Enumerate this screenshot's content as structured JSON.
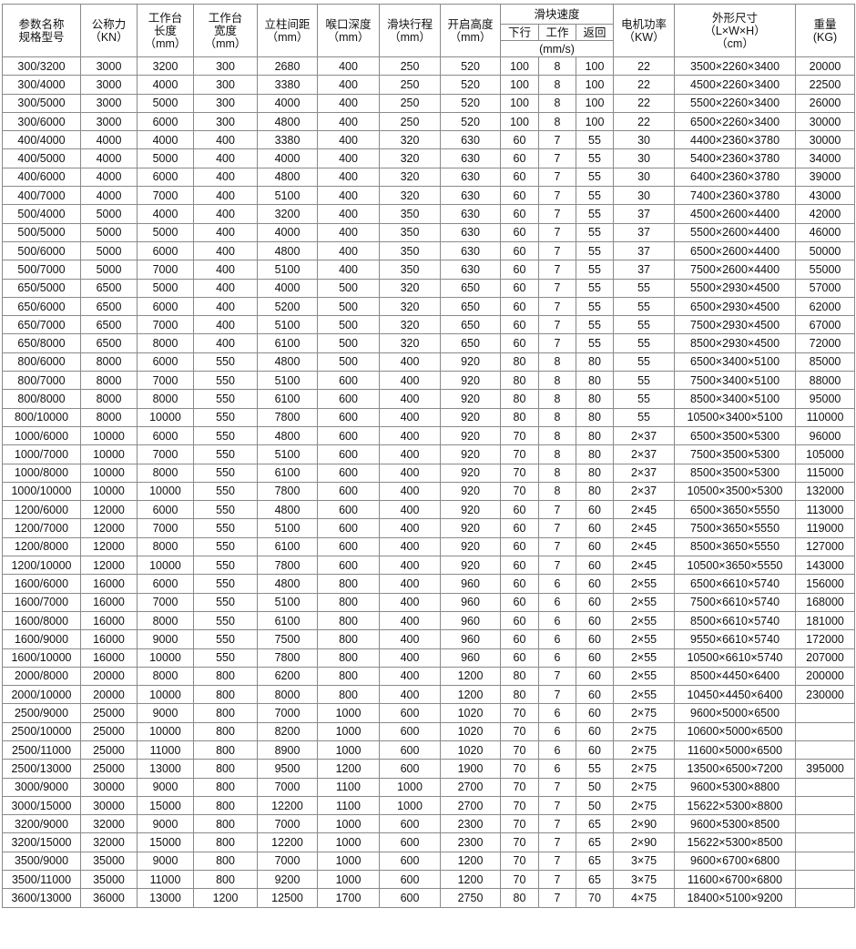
{
  "header": {
    "model": [
      "参数名称",
      "规格型号"
    ],
    "force": [
      "公称力",
      "（KN）"
    ],
    "table_length": [
      "工作台",
      "长度",
      "（mm）"
    ],
    "table_width": [
      "工作台",
      "宽度",
      "（mm）"
    ],
    "column_spacing": [
      "立柱间距",
      "（mm）"
    ],
    "throat_depth": [
      "喉口深度",
      "（mm）"
    ],
    "stroke": [
      "滑块行程",
      "（mm）"
    ],
    "open_height": [
      "开启高度",
      "（mm）"
    ],
    "slide_speed": "滑块速度",
    "speed_down": "下行",
    "speed_work": "工作",
    "speed_return": "返回",
    "speed_unit": "(mm/s)",
    "motor_power": [
      "电机功率",
      "（KW）"
    ],
    "dimensions": [
      "外形尺寸",
      "（L×W×H）",
      "（cm）"
    ],
    "weight": [
      "重量",
      "(KG)"
    ]
  },
  "rows": [
    [
      "300/3200",
      "3000",
      "3200",
      "300",
      "2680",
      "400",
      "250",
      "520",
      "100",
      "8",
      "100",
      "22",
      "3500×2260×3400",
      "20000"
    ],
    [
      "300/4000",
      "3000",
      "4000",
      "300",
      "3380",
      "400",
      "250",
      "520",
      "100",
      "8",
      "100",
      "22",
      "4500×2260×3400",
      "22500"
    ],
    [
      "300/5000",
      "3000",
      "5000",
      "300",
      "4000",
      "400",
      "250",
      "520",
      "100",
      "8",
      "100",
      "22",
      "5500×2260×3400",
      "26000"
    ],
    [
      "300/6000",
      "3000",
      "6000",
      "300",
      "4800",
      "400",
      "250",
      "520",
      "100",
      "8",
      "100",
      "22",
      "6500×2260×3400",
      "30000"
    ],
    [
      "400/4000",
      "4000",
      "4000",
      "400",
      "3380",
      "400",
      "320",
      "630",
      "60",
      "7",
      "55",
      "30",
      "4400×2360×3780",
      "30000"
    ],
    [
      "400/5000",
      "4000",
      "5000",
      "400",
      "4000",
      "400",
      "320",
      "630",
      "60",
      "7",
      "55",
      "30",
      "5400×2360×3780",
      "34000"
    ],
    [
      "400/6000",
      "4000",
      "6000",
      "400",
      "4800",
      "400",
      "320",
      "630",
      "60",
      "7",
      "55",
      "30",
      "6400×2360×3780",
      "39000"
    ],
    [
      "400/7000",
      "4000",
      "7000",
      "400",
      "5100",
      "400",
      "320",
      "630",
      "60",
      "7",
      "55",
      "30",
      "7400×2360×3780",
      "43000"
    ],
    [
      "500/4000",
      "5000",
      "4000",
      "400",
      "3200",
      "400",
      "350",
      "630",
      "60",
      "7",
      "55",
      "37",
      "4500×2600×4400",
      "42000"
    ],
    [
      "500/5000",
      "5000",
      "5000",
      "400",
      "4000",
      "400",
      "350",
      "630",
      "60",
      "7",
      "55",
      "37",
      "5500×2600×4400",
      "46000"
    ],
    [
      "500/6000",
      "5000",
      "6000",
      "400",
      "4800",
      "400",
      "350",
      "630",
      "60",
      "7",
      "55",
      "37",
      "6500×2600×4400",
      "50000"
    ],
    [
      "500/7000",
      "5000",
      "7000",
      "400",
      "5100",
      "400",
      "350",
      "630",
      "60",
      "7",
      "55",
      "37",
      "7500×2600×4400",
      "55000"
    ],
    [
      "650/5000",
      "6500",
      "5000",
      "400",
      "4000",
      "500",
      "320",
      "650",
      "60",
      "7",
      "55",
      "55",
      "5500×2930×4500",
      "57000"
    ],
    [
      "650/6000",
      "6500",
      "6000",
      "400",
      "5200",
      "500",
      "320",
      "650",
      "60",
      "7",
      "55",
      "55",
      "6500×2930×4500",
      "62000"
    ],
    [
      "650/7000",
      "6500",
      "7000",
      "400",
      "5100",
      "500",
      "320",
      "650",
      "60",
      "7",
      "55",
      "55",
      "7500×2930×4500",
      "67000"
    ],
    [
      "650/8000",
      "6500",
      "8000",
      "400",
      "6100",
      "500",
      "320",
      "650",
      "60",
      "7",
      "55",
      "55",
      "8500×2930×4500",
      "72000"
    ],
    [
      "800/6000",
      "8000",
      "6000",
      "550",
      "4800",
      "500",
      "400",
      "920",
      "80",
      "8",
      "80",
      "55",
      "6500×3400×5100",
      "85000"
    ],
    [
      "800/7000",
      "8000",
      "7000",
      "550",
      "5100",
      "600",
      "400",
      "920",
      "80",
      "8",
      "80",
      "55",
      "7500×3400×5100",
      "88000"
    ],
    [
      "800/8000",
      "8000",
      "8000",
      "550",
      "6100",
      "600",
      "400",
      "920",
      "80",
      "8",
      "80",
      "55",
      "8500×3400×5100",
      "95000"
    ],
    [
      "800/10000",
      "8000",
      "10000",
      "550",
      "7800",
      "600",
      "400",
      "920",
      "80",
      "8",
      "80",
      "55",
      "10500×3400×5100",
      "110000"
    ],
    [
      "1000/6000",
      "10000",
      "6000",
      "550",
      "4800",
      "600",
      "400",
      "920",
      "70",
      "8",
      "80",
      "2×37",
      "6500×3500×5300",
      "96000"
    ],
    [
      "1000/7000",
      "10000",
      "7000",
      "550",
      "5100",
      "600",
      "400",
      "920",
      "70",
      "8",
      "80",
      "2×37",
      "7500×3500×5300",
      "105000"
    ],
    [
      "1000/8000",
      "10000",
      "8000",
      "550",
      "6100",
      "600",
      "400",
      "920",
      "70",
      "8",
      "80",
      "2×37",
      "8500×3500×5300",
      "115000"
    ],
    [
      "1000/10000",
      "10000",
      "10000",
      "550",
      "7800",
      "600",
      "400",
      "920",
      "70",
      "8",
      "80",
      "2×37",
      "10500×3500×5300",
      "132000"
    ],
    [
      "1200/6000",
      "12000",
      "6000",
      "550",
      "4800",
      "600",
      "400",
      "920",
      "60",
      "7",
      "60",
      "2×45",
      "6500×3650×5550",
      "113000"
    ],
    [
      "1200/7000",
      "12000",
      "7000",
      "550",
      "5100",
      "600",
      "400",
      "920",
      "60",
      "7",
      "60",
      "2×45",
      "7500×3650×5550",
      "119000"
    ],
    [
      "1200/8000",
      "12000",
      "8000",
      "550",
      "6100",
      "600",
      "400",
      "920",
      "60",
      "7",
      "60",
      "2×45",
      "8500×3650×5550",
      "127000"
    ],
    [
      "1200/10000",
      "12000",
      "10000",
      "550",
      "7800",
      "600",
      "400",
      "920",
      "60",
      "7",
      "60",
      "2×45",
      "10500×3650×5550",
      "143000"
    ],
    [
      "1600/6000",
      "16000",
      "6000",
      "550",
      "4800",
      "800",
      "400",
      "960",
      "60",
      "6",
      "60",
      "2×55",
      "6500×6610×5740",
      "156000"
    ],
    [
      "1600/7000",
      "16000",
      "7000",
      "550",
      "5100",
      "800",
      "400",
      "960",
      "60",
      "6",
      "60",
      "2×55",
      "7500×6610×5740",
      "168000"
    ],
    [
      "1600/8000",
      "16000",
      "8000",
      "550",
      "6100",
      "800",
      "400",
      "960",
      "60",
      "6",
      "60",
      "2×55",
      "8500×6610×5740",
      "181000"
    ],
    [
      "1600/9000",
      "16000",
      "9000",
      "550",
      "7500",
      "800",
      "400",
      "960",
      "60",
      "6",
      "60",
      "2×55",
      "9550×6610×5740",
      "172000"
    ],
    [
      "1600/10000",
      "16000",
      "10000",
      "550",
      "7800",
      "800",
      "400",
      "960",
      "60",
      "6",
      "60",
      "2×55",
      "10500×6610×5740",
      "207000"
    ],
    [
      "2000/8000",
      "20000",
      "8000",
      "800",
      "6200",
      "800",
      "400",
      "1200",
      "80",
      "7",
      "60",
      "2×55",
      "8500×4450×6400",
      "200000"
    ],
    [
      "2000/10000",
      "20000",
      "10000",
      "800",
      "8000",
      "800",
      "400",
      "1200",
      "80",
      "7",
      "60",
      "2×55",
      "10450×4450×6400",
      "230000"
    ],
    [
      "2500/9000",
      "25000",
      "9000",
      "800",
      "7000",
      "1000",
      "600",
      "1020",
      "70",
      "6",
      "60",
      "2×75",
      "9600×5000×6500",
      ""
    ],
    [
      "2500/10000",
      "25000",
      "10000",
      "800",
      "8200",
      "1000",
      "600",
      "1020",
      "70",
      "6",
      "60",
      "2×75",
      "10600×5000×6500",
      ""
    ],
    [
      "2500/11000",
      "25000",
      "11000",
      "800",
      "8900",
      "1000",
      "600",
      "1020",
      "70",
      "6",
      "60",
      "2×75",
      "11600×5000×6500",
      ""
    ],
    [
      "2500/13000",
      "25000",
      "13000",
      "800",
      "9500",
      "1200",
      "600",
      "1900",
      "70",
      "6",
      "55",
      "2×75",
      "13500×6500×7200",
      "395000"
    ],
    [
      "3000/9000",
      "30000",
      "9000",
      "800",
      "7000",
      "1100",
      "1000",
      "2700",
      "70",
      "7",
      "50",
      "2×75",
      "9600×5300×8800",
      ""
    ],
    [
      "3000/15000",
      "30000",
      "15000",
      "800",
      "12200",
      "1100",
      "1000",
      "2700",
      "70",
      "7",
      "50",
      "2×75",
      "15622×5300×8800",
      ""
    ],
    [
      "3200/9000",
      "32000",
      "9000",
      "800",
      "7000",
      "1000",
      "600",
      "2300",
      "70",
      "7",
      "65",
      "2×90",
      "9600×5300×8500",
      ""
    ],
    [
      "3200/15000",
      "32000",
      "15000",
      "800",
      "12200",
      "1000",
      "600",
      "2300",
      "70",
      "7",
      "65",
      "2×90",
      "15622×5300×8500",
      ""
    ],
    [
      "3500/9000",
      "35000",
      "9000",
      "800",
      "7000",
      "1000",
      "600",
      "1200",
      "70",
      "7",
      "65",
      "3×75",
      "9600×6700×6800",
      ""
    ],
    [
      "3500/11000",
      "35000",
      "11000",
      "800",
      "9200",
      "1000",
      "600",
      "1200",
      "70",
      "7",
      "65",
      "3×75",
      "11600×6700×6800",
      ""
    ],
    [
      "3600/13000",
      "36000",
      "13000",
      "1200",
      "12500",
      "1700",
      "600",
      "2750",
      "80",
      "7",
      "70",
      "4×75",
      "18400×5100×9200",
      ""
    ]
  ]
}
